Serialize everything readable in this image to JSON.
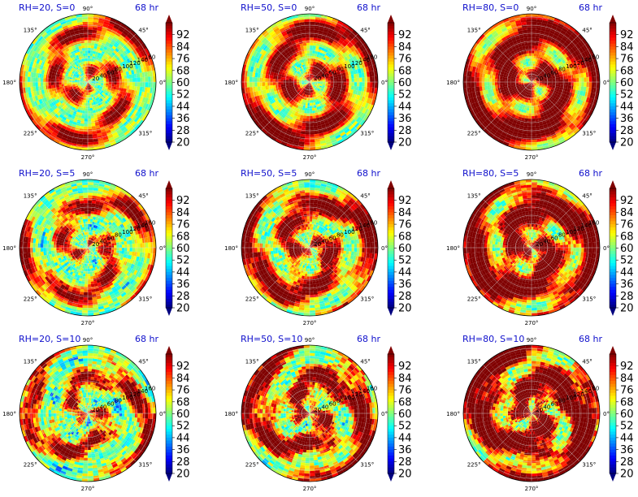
{
  "chart_data": {
    "type": "heatmap",
    "projection": "polar",
    "grid": true,
    "rows": 3,
    "cols": 3,
    "angular_ticks": [
      "90°",
      "45°",
      "0°",
      "315°",
      "270°",
      "225°",
      "180°",
      "135°"
    ],
    "radial_ticks": [
      "20",
      "40",
      "60",
      "80",
      "100",
      "120",
      "140",
      "160"
    ],
    "colorbar": {
      "colormap": "jet",
      "ticks": [
        "92",
        "84",
        "76",
        "68",
        "60",
        "52",
        "44",
        "36",
        "28",
        "20"
      ],
      "range": [
        20,
        100
      ],
      "extend": "both"
    },
    "panels": [
      {
        "title_left": "RH=20, S=0",
        "title_right": "68 hr",
        "RH": 20,
        "S": 0,
        "radial_labels_shown": true
      },
      {
        "title_left": "RH=50, S=0",
        "title_right": "68 hr",
        "RH": 50,
        "S": 0,
        "radial_labels_shown": true
      },
      {
        "title_left": "RH=80, S=0",
        "title_right": "68 hr",
        "RH": 80,
        "S": 0,
        "radial_labels_shown": true
      },
      {
        "title_left": "RH=20, S=5",
        "title_right": "68 hr",
        "RH": 20,
        "S": 5,
        "radial_labels_shown": true
      },
      {
        "title_left": "RH=50, S=5",
        "title_right": "68 hr",
        "RH": 50,
        "S": 5,
        "radial_labels_shown": true
      },
      {
        "title_left": "RH=80, S=5",
        "title_right": "68 hr",
        "RH": 80,
        "S": 5,
        "radial_labels_shown": true
      },
      {
        "title_left": "RH=20, S=10",
        "title_right": "68 hr",
        "RH": 20,
        "S": 10,
        "radial_labels_shown": true
      },
      {
        "title_left": "RH=50, S=10",
        "title_right": "68 hr",
        "RH": 50,
        "S": 10,
        "radial_labels_shown": true
      },
      {
        "title_left": "RH=80, S=10",
        "title_right": "68 hr",
        "RH": 80,
        "S": 10,
        "radial_labels_shown": true
      }
    ]
  }
}
